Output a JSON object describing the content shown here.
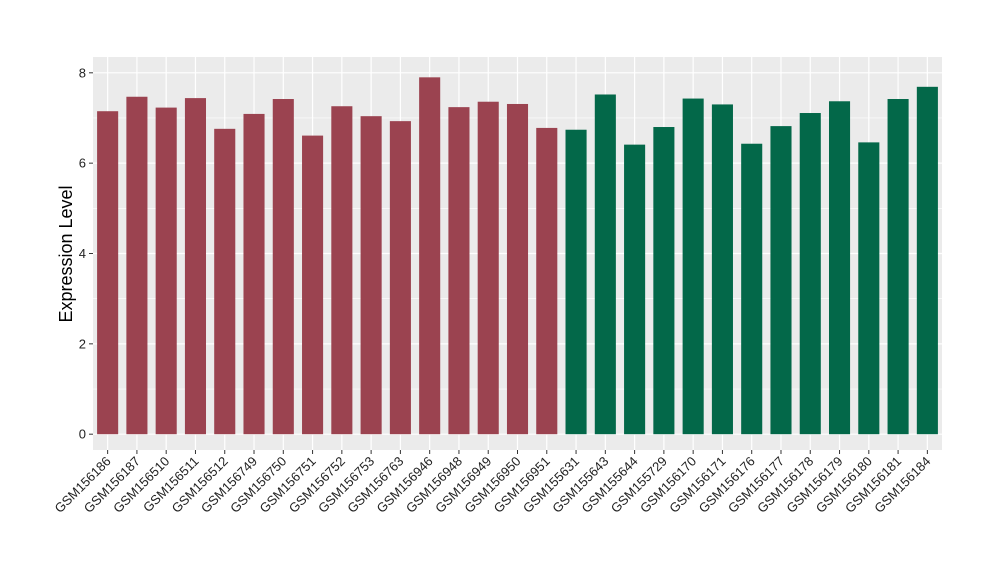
{
  "chart_data": {
    "type": "bar",
    "ylabel": "Expression Level",
    "xlabel": "",
    "title": "",
    "ylim": [
      -0.35,
      8.35
    ],
    "yticks": [
      0,
      2,
      4,
      6,
      8
    ],
    "grid": true,
    "colors": {
      "group1": "#9b4350",
      "group2": "#036849",
      "panel": "#ebebeb",
      "gridline": "#ffffff"
    },
    "categories": [
      "GSM156186",
      "GSM156187",
      "GSM156510",
      "GSM156511",
      "GSM156512",
      "GSM156749",
      "GSM156750",
      "GSM156751",
      "GSM156752",
      "GSM156753",
      "GSM156763",
      "GSM156946",
      "GSM156948",
      "GSM156949",
      "GSM156950",
      "GSM156951",
      "GSM155631",
      "GSM155643",
      "GSM155644",
      "GSM155729",
      "GSM156170",
      "GSM156171",
      "GSM156176",
      "GSM156177",
      "GSM156178",
      "GSM156179",
      "GSM156180",
      "GSM156181",
      "GSM156184"
    ],
    "values": [
      7.15,
      7.47,
      7.23,
      7.44,
      6.76,
      7.09,
      7.42,
      6.61,
      7.26,
      7.04,
      6.93,
      7.9,
      7.24,
      7.36,
      7.31,
      6.78,
      6.74,
      7.52,
      6.41,
      6.8,
      7.43,
      7.3,
      6.43,
      6.82,
      7.11,
      7.37,
      6.46,
      7.42,
      7.69
    ],
    "groups": [
      1,
      1,
      1,
      1,
      1,
      1,
      1,
      1,
      1,
      1,
      1,
      1,
      1,
      1,
      1,
      1,
      2,
      2,
      2,
      2,
      2,
      2,
      2,
      2,
      2,
      2,
      2,
      2,
      2
    ]
  }
}
